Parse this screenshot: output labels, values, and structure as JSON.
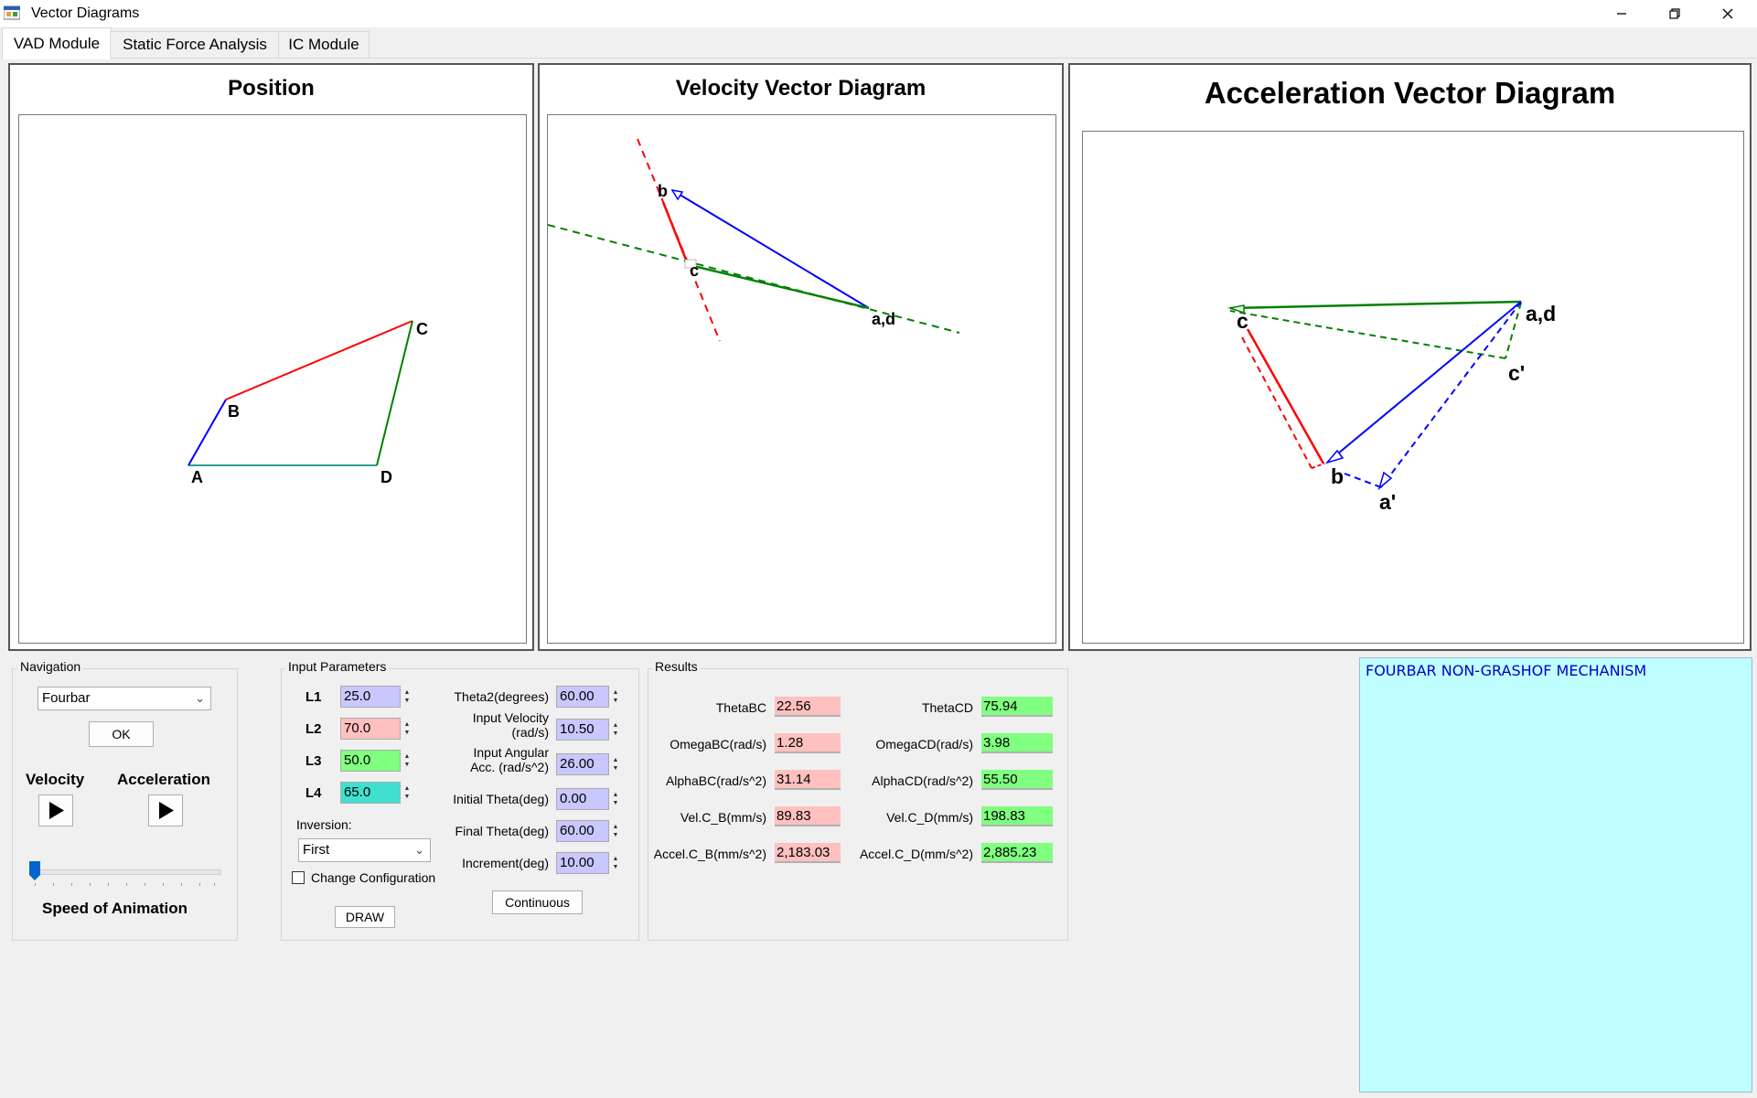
{
  "window": {
    "title": "Vector Diagrams",
    "controls": {
      "minimize": "—",
      "maximize": "⧉",
      "close": "✕"
    }
  },
  "tabs": [
    "VAD Module",
    "Static Force Analysis",
    "IC Module"
  ],
  "panels": {
    "position": {
      "title": "Position",
      "labels": {
        "A": "A",
        "B": "B",
        "C": "C",
        "D": "D"
      }
    },
    "velocity": {
      "title": "Velocity Vector Diagram",
      "labels": {
        "b": "b",
        "c": "c",
        "ad": "a,d"
      }
    },
    "acceleration": {
      "title": "Acceleration Vector Diagram",
      "labels": {
        "c": "c",
        "ad": "a,d",
        "c_prime": "c'",
        "b": "b",
        "a_prime": "a'"
      }
    }
  },
  "navigation": {
    "title": "Navigation",
    "mechanism_select": "Fourbar",
    "ok_label": "OK",
    "velocity_label": "Velocity",
    "acceleration_label": "Acceleration",
    "speed_label": "Speed of Animation",
    "speed_level": 0.0
  },
  "input_parameters": {
    "title": "Input Parameters",
    "links": [
      {
        "label": "L1",
        "value": "25.0",
        "color": "#c8c8ff"
      },
      {
        "label": "L2",
        "value": "70.0",
        "color": "#ffc0c0"
      },
      {
        "label": "L3",
        "value": "50.0",
        "color": "#80ff80"
      },
      {
        "label": "L4",
        "value": "65.0",
        "color": "#40e0d0"
      }
    ],
    "inversion_label": "Inversion:",
    "inversion_value": "First",
    "change_config_label": "Change Configuration",
    "change_config_checked": false,
    "draw_label": "DRAW",
    "angles": [
      {
        "label": "Theta2(degrees)",
        "value": "60.00"
      },
      {
        "label": "Input Velocity\n(rad/s)",
        "value": "10.50"
      },
      {
        "label": "Input Angular\nAcc. (rad/s^2)",
        "value": "26.00"
      },
      {
        "label": "Initial Theta(deg)",
        "value": "0.00"
      },
      {
        "label": "Final Theta(deg)",
        "value": "60.00"
      },
      {
        "label": "Increment(deg)",
        "value": "10.00"
      }
    ],
    "continuous_label": "Continuous"
  },
  "results": {
    "title": "Results",
    "left": [
      {
        "label": "ThetaBC",
        "value": "22.56"
      },
      {
        "label": "OmegaBC(rad/s)",
        "value": "1.28"
      },
      {
        "label": "AlphaBC(rad/s^2)",
        "value": "31.14"
      },
      {
        "label": "Vel.C_B(mm/s)",
        "value": "89.83"
      },
      {
        "label": "Accel.C_B(mm/s^2)",
        "value": "2,183.03"
      }
    ],
    "right": [
      {
        "label": "ThetaCD",
        "value": "75.94"
      },
      {
        "label": "OmegaCD(rad/s)",
        "value": "3.98"
      },
      {
        "label": "AlphaCD(rad/s^2)",
        "value": "55.50"
      },
      {
        "label": "Vel.C_D(mm/s)",
        "value": "198.83"
      },
      {
        "label": "Accel.C_D(mm/s^2)",
        "value": "2,885.23"
      }
    ]
  },
  "info_box": {
    "text": "FOURBAR NON-GRASHOF MECHANISM",
    "background": "#c0ffff",
    "text_color": "#0000cc"
  },
  "colors": {
    "link2": "#0000ff",
    "link3": "#ff0000",
    "link4": "#008000",
    "ground": "#2aa198"
  }
}
